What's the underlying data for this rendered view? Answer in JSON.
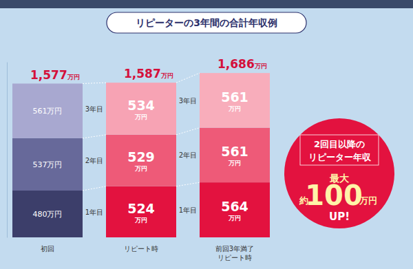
{
  "chart_data": {
    "type": "bar",
    "stacked": true,
    "data_labels": true,
    "tick_labels": false,
    "grid": false,
    "title": "リピーターの3年間の合計年収例",
    "categories": [
      "初回",
      "リピート時",
      "前回3年満了\nリピート時"
    ],
    "ylim": [
      0,
      1800
    ],
    "yticks": [],
    "series": [
      {
        "name": "1年目",
        "colors": [
          "#3c3e6a",
          "#e3123f",
          "#e3123f"
        ],
        "values": [
          480,
          524,
          564
        ],
        "value_labels": [
          "480万円",
          "524\n万円",
          "564\n万円"
        ]
      },
      {
        "name": "2年目",
        "colors": [
          "#67699a",
          "#ee5a78",
          "#ee5a78"
        ],
        "values": [
          537,
          529,
          561
        ],
        "value_labels": [
          "537万円",
          "529\n万円",
          "561\n万円"
        ]
      },
      {
        "name": "3年目",
        "colors": [
          "#a8a8d0",
          "#f7a3b4",
          "#f8adbb"
        ],
        "values": [
          561,
          534,
          561
        ],
        "value_labels": [
          "561万円",
          "534\n万円",
          "561\n万円"
        ]
      }
    ],
    "totals": [
      1577,
      1587,
      1686
    ],
    "total_labels": [
      "1,577万円",
      "1,587万円",
      "1,686万円"
    ],
    "annotation": {
      "heading": "2回目以降の\nリピーター年収",
      "max_label": "最大",
      "prefix": "約",
      "value": 100,
      "unit": "万円",
      "suffix": "UP!"
    }
  }
}
